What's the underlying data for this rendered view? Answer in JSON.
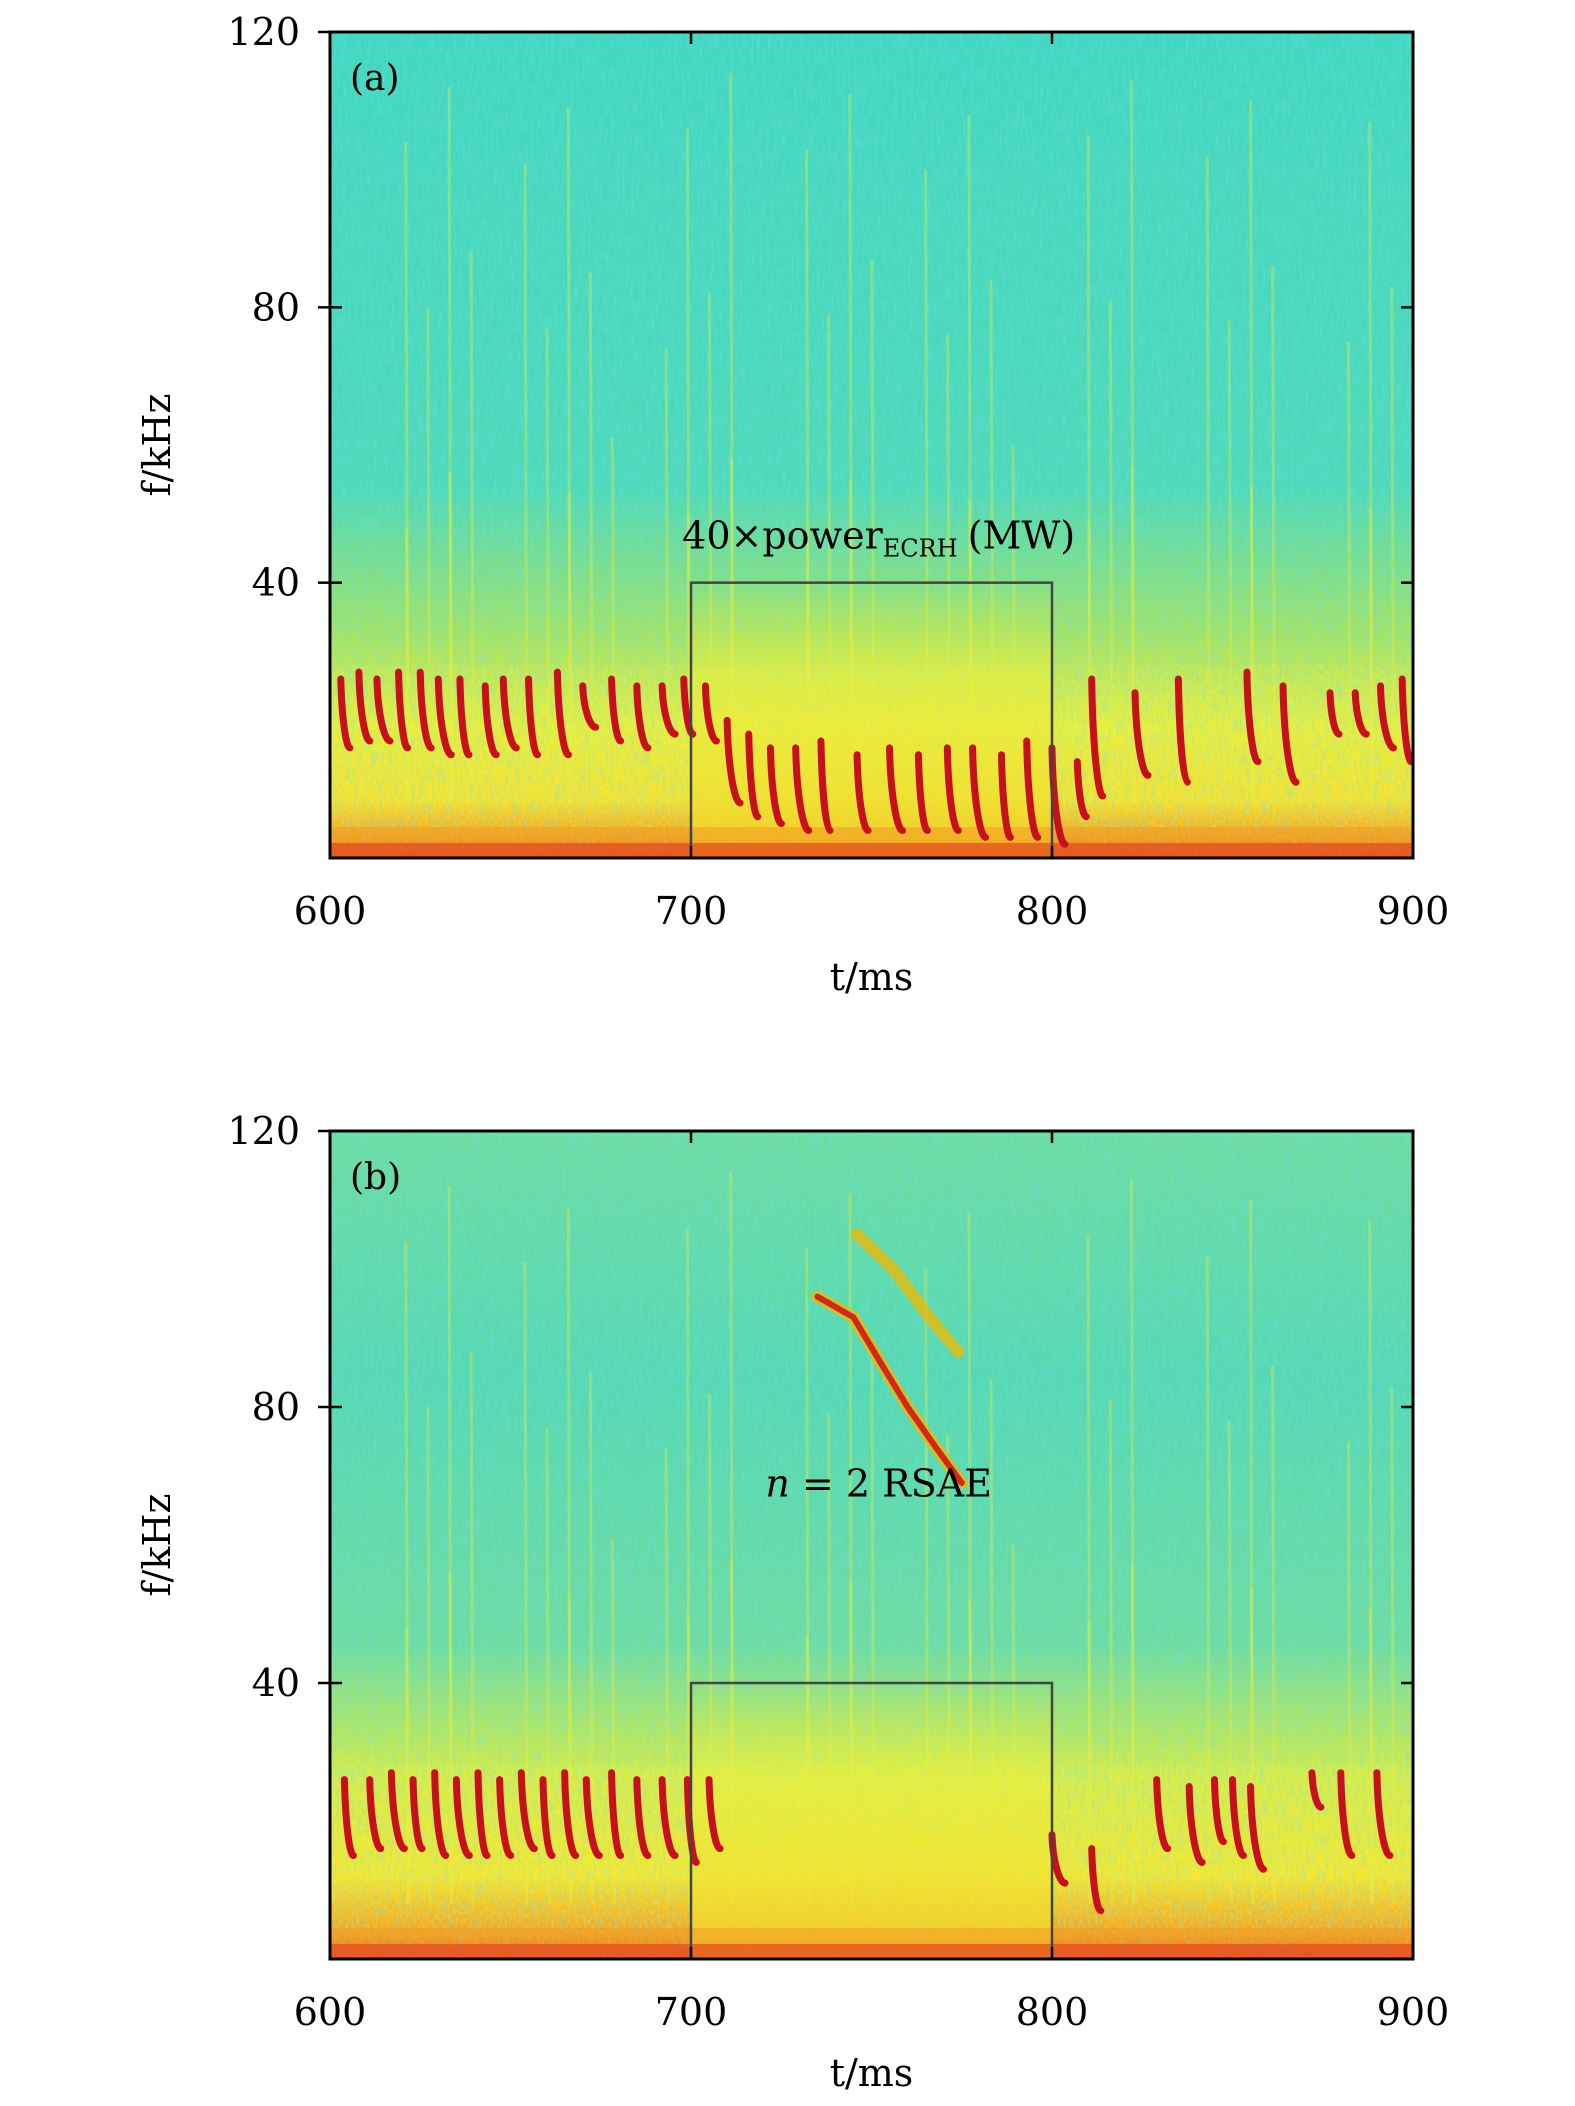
{
  "figure": {
    "colors": {
      "background_high_freq": "#3fd8c0",
      "background_mid": "#8fe07a",
      "background_low": "#f2ef3a",
      "low_band": "#f3a61f",
      "baseline": "#e8571e",
      "mode": "#c8101c",
      "box": "#444444"
    }
  },
  "chart_data": [
    {
      "type": "heatmap",
      "panel_label": "(a)",
      "xlabel": "t/ms",
      "ylabel": "f/kHz",
      "xlim": [
        600,
        900
      ],
      "ylim": [
        0,
        120
      ],
      "xticks": [
        600,
        700,
        800,
        900
      ],
      "yticks": [
        40,
        80,
        120
      ],
      "annotations": [
        {
          "text_prefix": "40",
          "text_times": "×",
          "text_main": "power",
          "text_sub": "ECRH",
          "text_suffix": "(MW)",
          "x": 752,
          "y": 45
        }
      ],
      "box": {
        "x0": 700,
        "x1": 800,
        "y0": 0,
        "y1": 40
      },
      "chirps": [
        {
          "x": 603,
          "f_start": 26,
          "f_end": 16
        },
        {
          "x": 608,
          "f_start": 27,
          "f_end": 17
        },
        {
          "x": 613,
          "f_start": 26,
          "f_end": 17
        },
        {
          "x": 619,
          "f_start": 27,
          "f_end": 16
        },
        {
          "x": 625,
          "f_start": 27,
          "f_end": 16
        },
        {
          "x": 630,
          "f_start": 26,
          "f_end": 15
        },
        {
          "x": 636,
          "f_start": 26,
          "f_end": 15
        },
        {
          "x": 643,
          "f_start": 25,
          "f_end": 15
        },
        {
          "x": 648,
          "f_start": 26,
          "f_end": 16
        },
        {
          "x": 655,
          "f_start": 26,
          "f_end": 15
        },
        {
          "x": 663,
          "f_start": 27,
          "f_end": 15
        },
        {
          "x": 670,
          "f_start": 25,
          "f_end": 19
        },
        {
          "x": 678,
          "f_start": 26,
          "f_end": 17
        },
        {
          "x": 685,
          "f_start": 25,
          "f_end": 16
        },
        {
          "x": 692,
          "f_start": 25,
          "f_end": 18
        },
        {
          "x": 698,
          "f_start": 26,
          "f_end": 18
        },
        {
          "x": 704,
          "f_start": 25,
          "f_end": 17
        },
        {
          "x": 710,
          "f_start": 20,
          "f_end": 8
        },
        {
          "x": 716,
          "f_start": 18,
          "f_end": 6
        },
        {
          "x": 722,
          "f_start": 16,
          "f_end": 5
        },
        {
          "x": 729,
          "f_start": 16,
          "f_end": 4
        },
        {
          "x": 736,
          "f_start": 17,
          "f_end": 4
        },
        {
          "x": 746,
          "f_start": 15,
          "f_end": 4
        },
        {
          "x": 755,
          "f_start": 16,
          "f_end": 4
        },
        {
          "x": 763,
          "f_start": 15,
          "f_end": 4
        },
        {
          "x": 771,
          "f_start": 16,
          "f_end": 4
        },
        {
          "x": 778,
          "f_start": 16,
          "f_end": 3
        },
        {
          "x": 786,
          "f_start": 15,
          "f_end": 3
        },
        {
          "x": 793,
          "f_start": 17,
          "f_end": 3
        },
        {
          "x": 800,
          "f_start": 16,
          "f_end": 2
        },
        {
          "x": 807,
          "f_start": 14,
          "f_end": 6
        },
        {
          "x": 811,
          "f_start": 26,
          "f_end": 9
        },
        {
          "x": 823,
          "f_start": 24,
          "f_end": 12
        },
        {
          "x": 835,
          "f_start": 26,
          "f_end": 11
        },
        {
          "x": 854,
          "f_start": 27,
          "f_end": 14
        },
        {
          "x": 864,
          "f_start": 25,
          "f_end": 11
        },
        {
          "x": 877,
          "f_start": 24,
          "f_end": 18
        },
        {
          "x": 884,
          "f_start": 24,
          "f_end": 18
        },
        {
          "x": 891,
          "f_start": 25,
          "f_end": 16
        },
        {
          "x": 897,
          "f_start": 26,
          "f_end": 14
        }
      ]
    },
    {
      "type": "heatmap",
      "panel_label": "(b)",
      "xlabel": "t/ms",
      "ylabel": "f/kHz",
      "xlim": [
        600,
        900
      ],
      "ylim": [
        0,
        120
      ],
      "xticks": [
        600,
        700,
        800,
        900
      ],
      "yticks": [
        40,
        80,
        120
      ],
      "annotations": [
        {
          "text_prefix": "",
          "text_var": "n",
          "text_main": " = 2 RSAE",
          "x": 752,
          "y": 67
        }
      ],
      "box": {
        "x0": 700,
        "x1": 800,
        "y0": 0,
        "y1": 40
      },
      "rsae": [
        [
          735,
          96
        ],
        [
          745,
          93
        ],
        [
          753,
          86
        ],
        [
          760,
          80
        ],
        [
          768,
          74
        ],
        [
          775,
          69
        ]
      ],
      "rsae_faint": [
        [
          746,
          105
        ],
        [
          756,
          100
        ],
        [
          766,
          93
        ],
        [
          774,
          88
        ]
      ],
      "chirps": [
        {
          "x": 604,
          "f_start": 26,
          "f_end": 15
        },
        {
          "x": 611,
          "f_start": 26,
          "f_end": 16
        },
        {
          "x": 617,
          "f_start": 27,
          "f_end": 16
        },
        {
          "x": 623,
          "f_start": 26,
          "f_end": 16
        },
        {
          "x": 629,
          "f_start": 27,
          "f_end": 15
        },
        {
          "x": 635,
          "f_start": 26,
          "f_end": 15
        },
        {
          "x": 641,
          "f_start": 27,
          "f_end": 15
        },
        {
          "x": 647,
          "f_start": 26,
          "f_end": 15
        },
        {
          "x": 653,
          "f_start": 27,
          "f_end": 16
        },
        {
          "x": 659,
          "f_start": 26,
          "f_end": 15
        },
        {
          "x": 665,
          "f_start": 27,
          "f_end": 15
        },
        {
          "x": 671,
          "f_start": 26,
          "f_end": 15
        },
        {
          "x": 678,
          "f_start": 27,
          "f_end": 15
        },
        {
          "x": 685,
          "f_start": 26,
          "f_end": 15
        },
        {
          "x": 692,
          "f_start": 26,
          "f_end": 15
        },
        {
          "x": 699,
          "f_start": 26,
          "f_end": 14
        },
        {
          "x": 705,
          "f_start": 26,
          "f_end": 16
        },
        {
          "x": 800,
          "f_start": 18,
          "f_end": 11
        },
        {
          "x": 811,
          "f_start": 16,
          "f_end": 7
        },
        {
          "x": 829,
          "f_start": 26,
          "f_end": 16
        },
        {
          "x": 838,
          "f_start": 25,
          "f_end": 14
        },
        {
          "x": 845,
          "f_start": 26,
          "f_end": 17
        },
        {
          "x": 850,
          "f_start": 26,
          "f_end": 15
        },
        {
          "x": 855,
          "f_start": 25,
          "f_end": 13
        },
        {
          "x": 872,
          "f_start": 27,
          "f_end": 22
        },
        {
          "x": 880,
          "f_start": 27,
          "f_end": 15
        },
        {
          "x": 890,
          "f_start": 27,
          "f_end": 15
        }
      ]
    }
  ]
}
